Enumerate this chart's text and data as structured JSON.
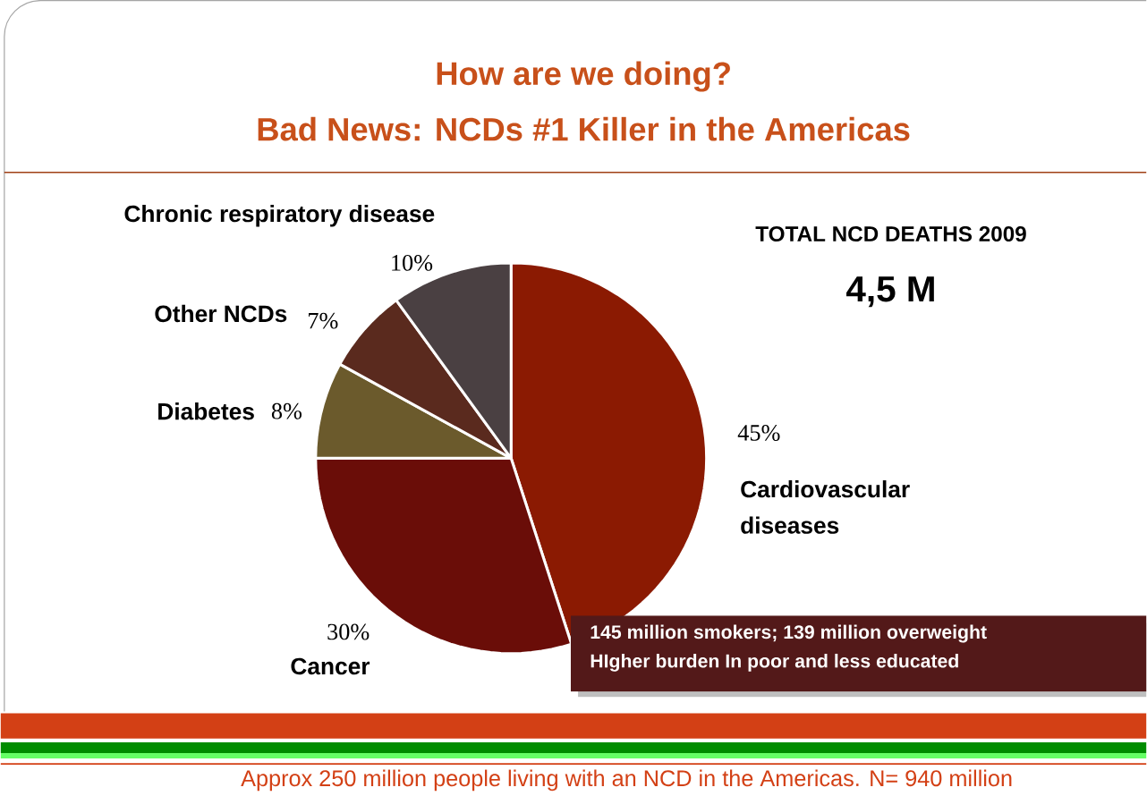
{
  "chart_data": {
    "type": "pie",
    "title": "How are we doing?",
    "subtitle": "Bad News: NCDs #1 Killer in the Americas",
    "categories": [
      "Cardiovascular diseases",
      "Cancer",
      "Diabetes",
      "Other NCDs",
      "Chronic respiratory disease"
    ],
    "values": [
      45,
      30,
      8,
      7,
      10
    ],
    "colors": [
      "#8b1a02",
      "#6a0d08",
      "#6b5a2c",
      "#5a2a1e",
      "#4a4042"
    ],
    "value_labels": [
      "45%",
      "30%",
      "8%",
      "7%",
      "10%"
    ],
    "annotations": [
      "TOTAL NCD DEATHS 2009",
      "4,5 M",
      "145 million smokers; 139 million overweight",
      "HIgher burden In poor and less educated",
      "Approx 250 million people living with an NCD in the Americas. N= 940 million"
    ]
  }
}
